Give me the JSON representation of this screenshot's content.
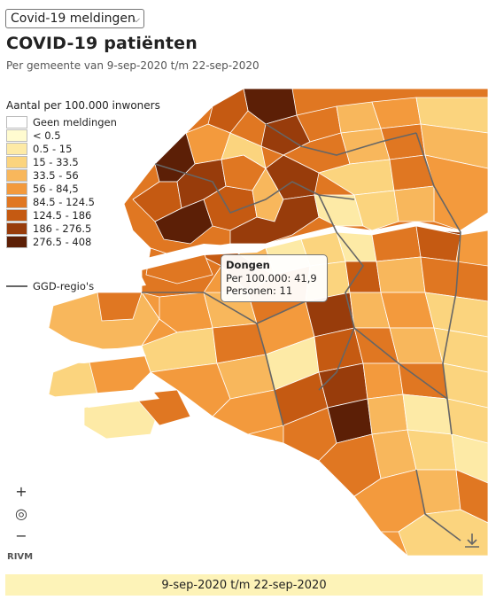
{
  "selector": {
    "value": "Covid-19 meldingen"
  },
  "title": "COVID-19 patiënten",
  "subtitle": "Per gemeente van 9-sep-2020 t/m 22-sep-2020",
  "legend": {
    "title": "Aantal per 100.000 inwoners",
    "items": [
      {
        "label": "Geen meldingen",
        "color": "#ffffff"
      },
      {
        "label": "< 0.5",
        "color": "#fffbd0"
      },
      {
        "label": "0.5 - 15",
        "color": "#fdeaa6"
      },
      {
        "label": "15 - 33.5",
        "color": "#fbd47e"
      },
      {
        "label": "33.5 - 56",
        "color": "#f8b75c"
      },
      {
        "label": "56 - 84,5",
        "color": "#f39a3d"
      },
      {
        "label": "84.5 - 124.5",
        "color": "#e07722"
      },
      {
        "label": "124.5 - 186",
        "color": "#c55a12"
      },
      {
        "label": "186 - 276.5",
        "color": "#983c0b"
      },
      {
        "label": "276.5 - 408",
        "color": "#5c1f06"
      }
    ],
    "ggd_label": "GGD-regio's"
  },
  "map": {
    "zoom_in": "+",
    "locate": "◎",
    "zoom_out": "−",
    "attribution": "RIVM",
    "download_icon": "download-icon"
  },
  "tooltip": {
    "name": "Dongen",
    "per100k": "Per 100.000: 41,9",
    "persons": "Personen: 11"
  },
  "period": "9-sep-2020 t/m 22-sep-2020"
}
